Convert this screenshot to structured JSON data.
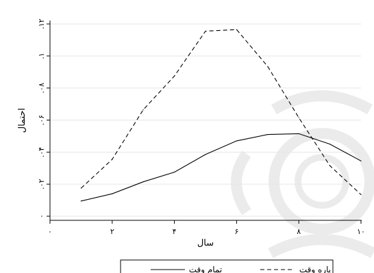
{
  "chart_data": {
    "type": "line",
    "xlabel": "سال",
    "ylabel": "احتمال",
    "xlim": [
      0,
      10
    ],
    "ylim": [
      0,
      0.12
    ],
    "x_ticks": [
      {
        "value": 0,
        "label": "۰"
      },
      {
        "value": 2,
        "label": "۲"
      },
      {
        "value": 4,
        "label": "۴"
      },
      {
        "value": 6,
        "label": "۶"
      },
      {
        "value": 8,
        "label": "۸"
      },
      {
        "value": 10,
        "label": "۱۰"
      }
    ],
    "y_ticks": [
      {
        "value": 0,
        "label": "۰"
      },
      {
        "value": 0.02,
        "label": ".۰۲"
      },
      {
        "value": 0.04,
        "label": ".۰۴"
      },
      {
        "value": 0.06,
        "label": ".۰۶"
      },
      {
        "value": 0.08,
        "label": ".۰۸"
      },
      {
        "value": 0.1,
        "label": ".۱"
      },
      {
        "value": 0.12,
        "label": ".۱۲"
      }
    ],
    "grid": true,
    "legend_position": "bottom",
    "x": [
      1,
      2,
      3,
      4,
      5,
      6,
      7,
      8,
      9,
      10
    ],
    "series": [
      {
        "name": "تمام وقت",
        "style": "solid",
        "color": "#000000",
        "values": [
          0.0095,
          0.014,
          0.0215,
          0.0275,
          0.0385,
          0.047,
          0.051,
          0.0515,
          0.045,
          0.0345
        ]
      },
      {
        "name": "پاره وقت",
        "style": "dashed",
        "color": "#000000",
        "values": [
          0.0175,
          0.0355,
          0.0665,
          0.0875,
          0.1155,
          0.1165,
          0.0935,
          0.0615,
          0.0315,
          0.0135
        ]
      }
    ]
  }
}
